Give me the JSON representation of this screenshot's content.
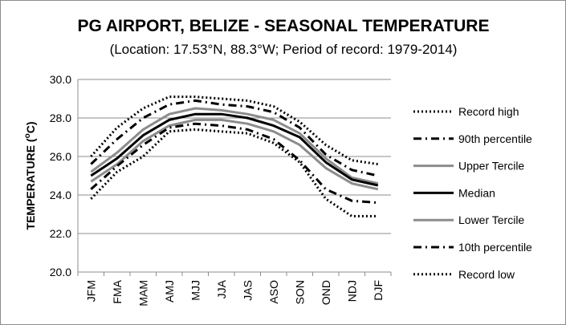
{
  "chart_data": {
    "type": "line",
    "title": "PG AIRPORT, BELIZE - SEASONAL TEMPERATURE",
    "subtitle": "(Location: 17.53°N, 88.3°W; Period of record: 1979-2014)",
    "ylabel_main": "TEMPERATURE (",
    "ylabel_sup": "o",
    "ylabel_end": "C)",
    "xlabel": "",
    "ylim": [
      20.0,
      30.0
    ],
    "y_ticks": [
      "20.0",
      "22.0",
      "24.0",
      "26.0",
      "28.0",
      "30.0"
    ],
    "grid": true,
    "legend_position": "right",
    "categories": [
      "JFM",
      "FMA",
      "MAM",
      "AMJ",
      "MJJ",
      "JJA",
      "JAS",
      "ASO",
      "SON",
      "OND",
      "NDJ",
      "DJF"
    ],
    "series": [
      {
        "name": "Record high",
        "style": "dotted",
        "color": "#000000",
        "values": [
          26.0,
          27.5,
          28.5,
          29.1,
          29.1,
          29.0,
          28.9,
          28.6,
          27.8,
          26.6,
          25.8,
          25.6
        ]
      },
      {
        "name": "90th percentile",
        "style": "dashdot",
        "color": "#000000",
        "values": [
          25.6,
          26.9,
          28.0,
          28.7,
          28.9,
          28.7,
          28.6,
          28.3,
          27.5,
          26.1,
          25.3,
          25.0
        ]
      },
      {
        "name": "Upper Tercile",
        "style": "solid",
        "color": "#8c8c8c",
        "values": [
          25.2,
          26.2,
          27.4,
          28.2,
          28.5,
          28.4,
          28.2,
          27.9,
          27.2,
          25.9,
          24.9,
          24.6
        ]
      },
      {
        "name": "Median",
        "style": "solid",
        "color": "#000000",
        "values": [
          25.0,
          25.9,
          27.1,
          27.9,
          28.2,
          28.2,
          28.0,
          27.6,
          27.0,
          25.7,
          24.8,
          24.5
        ]
      },
      {
        "name": "Lower Tercile",
        "style": "solid",
        "color": "#8c8c8c",
        "values": [
          24.7,
          25.6,
          26.8,
          27.6,
          27.9,
          27.9,
          27.7,
          27.3,
          26.6,
          25.4,
          24.6,
          24.3
        ]
      },
      {
        "name": "10th percentile",
        "style": "dashdot",
        "color": "#000000",
        "values": [
          24.3,
          25.5,
          26.6,
          27.5,
          27.7,
          27.6,
          27.4,
          26.9,
          25.8,
          24.3,
          23.7,
          23.6
        ]
      },
      {
        "name": "Record low",
        "style": "dotted",
        "color": "#000000",
        "values": [
          23.8,
          25.2,
          26.0,
          27.3,
          27.4,
          27.3,
          27.2,
          26.7,
          25.7,
          23.8,
          22.9,
          22.9
        ]
      }
    ]
  }
}
